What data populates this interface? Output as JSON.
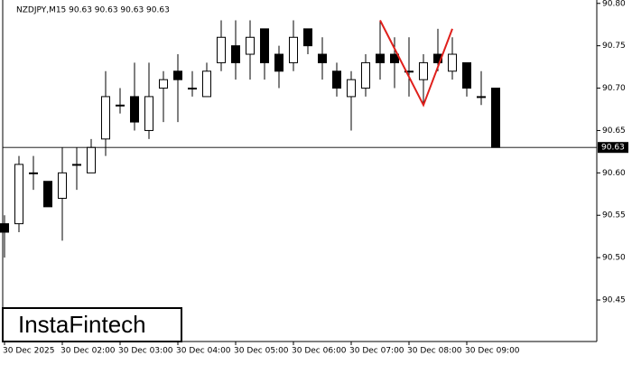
{
  "chart_data": {
    "type": "candlestick",
    "title": "NZDJPY,M15  90.63 90.63 90.63 90.63",
    "watermark": "InstaFintech",
    "categories": [
      "30 Dec 2025",
      null,
      null,
      null,
      "30 Dec 02:00",
      null,
      null,
      null,
      "30 Dec 03:00",
      null,
      null,
      null,
      "30 Dec 04:00",
      null,
      null,
      null,
      "30 Dec 05:00",
      null,
      null,
      null,
      "30 Dec 06:00",
      null,
      null,
      null,
      "30 Dec 07:00",
      null,
      null,
      null,
      "30 Dec 08:00",
      null,
      null,
      null,
      "30 Dec 09:00",
      null,
      null
    ],
    "open": [
      90.54,
      90.54,
      90.6,
      90.59,
      90.57,
      90.61,
      90.6,
      90.64,
      90.68,
      90.69,
      90.65,
      90.7,
      90.72,
      90.7,
      90.69,
      90.73,
      90.75,
      90.74,
      90.77,
      90.74,
      90.73,
      90.77,
      90.74,
      90.72,
      90.69,
      90.7,
      90.74,
      90.74,
      90.72,
      90.71,
      90.74,
      90.72,
      90.73,
      90.69,
      90.7
    ],
    "high": [
      90.55,
      90.62,
      90.62,
      90.59,
      90.63,
      90.63,
      90.64,
      90.72,
      90.7,
      90.73,
      90.73,
      90.72,
      90.74,
      90.72,
      90.73,
      90.78,
      90.78,
      90.78,
      90.77,
      90.75,
      90.78,
      90.77,
      90.76,
      90.73,
      90.72,
      90.74,
      90.78,
      90.76,
      90.76,
      90.74,
      90.77,
      90.76,
      90.73,
      90.72,
      90.7
    ],
    "low": [
      90.5,
      90.53,
      90.58,
      90.56,
      90.52,
      90.58,
      90.6,
      90.62,
      90.67,
      90.65,
      90.64,
      90.66,
      90.66,
      90.69,
      90.69,
      90.72,
      90.71,
      90.71,
      90.71,
      90.7,
      90.72,
      90.74,
      90.71,
      90.69,
      90.65,
      90.69,
      90.71,
      90.7,
      90.69,
      90.68,
      90.72,
      90.71,
      90.69,
      90.68,
      90.63
    ],
    "close": [
      90.53,
      90.61,
      90.6,
      90.56,
      90.6,
      90.61,
      90.63,
      90.69,
      90.68,
      90.66,
      90.69,
      90.71,
      90.71,
      90.7,
      90.72,
      90.76,
      90.73,
      90.76,
      90.73,
      90.72,
      90.76,
      90.75,
      90.73,
      90.7,
      90.71,
      90.73,
      90.73,
      90.73,
      90.72,
      90.73,
      90.73,
      90.74,
      90.7,
      90.69,
      90.63
    ],
    "current_price": 90.63,
    "pattern": {
      "color": "#e0201c",
      "x": [
        26,
        29,
        31
      ],
      "values": [
        90.78,
        90.68,
        90.77
      ]
    },
    "ylim": [
      90.401,
      90.804
    ],
    "yticks": [
      90.45,
      {
        "value": 90.5,
        "label": "90.50"
      },
      90.55,
      {
        "value": 90.6,
        "label": "90.60"
      },
      90.65,
      {
        "value": 90.7,
        "label": "90.70"
      },
      90.75,
      {
        "value": 90.8,
        "label": "90.80"
      }
    ]
  }
}
